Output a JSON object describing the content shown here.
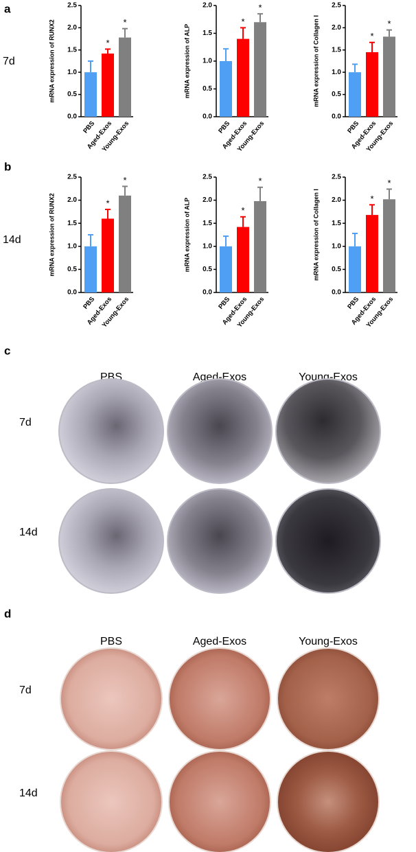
{
  "figure": {
    "panels": [
      {
        "label": "a",
        "row_label": "7d"
      },
      {
        "label": "b",
        "row_label": "14d"
      },
      {
        "label": "c",
        "columns": [
          "PBS",
          "Aged-Exos",
          "Young-Exos"
        ],
        "rows": [
          "7d",
          "14d"
        ]
      },
      {
        "label": "d",
        "columns": [
          "PBS",
          "Aged-Exos",
          "Young-Exos"
        ],
        "rows": [
          "7d",
          "14d"
        ]
      }
    ]
  },
  "chart_data": [
    {
      "type": "bar",
      "ylabel": "mRNA expression of RUNX2",
      "categories": [
        "PBS",
        "Aged-Exos",
        "Young-Exos"
      ],
      "values": [
        1.0,
        1.42,
        1.78
      ],
      "errors": [
        0.25,
        0.1,
        0.2
      ],
      "annotations": [
        null,
        "*",
        "*"
      ],
      "colors": [
        "#4f9ff5",
        "#ff0000",
        "#808080"
      ],
      "ylim": [
        0,
        2.5
      ],
      "yticks": [
        {
          "value": 0,
          "label": "0.0"
        },
        0.5,
        {
          "value": 1,
          "label": "1.0"
        },
        1.5,
        {
          "value": 2,
          "label": "2.0"
        },
        2.5
      ]
    },
    {
      "type": "bar",
      "ylabel": "mRNA expression of ALP",
      "categories": [
        "PBS",
        "Aged-Exos",
        "Young-Exos"
      ],
      "values": [
        1.0,
        1.4,
        1.7
      ],
      "errors": [
        0.22,
        0.2,
        0.15
      ],
      "annotations": [
        null,
        "*",
        "*"
      ],
      "colors": [
        "#4f9ff5",
        "#ff0000",
        "#808080"
      ],
      "ylim": [
        0,
        2
      ],
      "yticks": [
        {
          "value": 0,
          "label": "0.0"
        },
        0.5,
        {
          "value": 1,
          "label": "1.0"
        },
        1.5,
        {
          "value": 2,
          "label": "2.0"
        }
      ]
    },
    {
      "type": "bar",
      "ylabel": "mRNA expression of Collagen I",
      "categories": [
        "PBS",
        "Aged-Exos",
        "Young-Exos"
      ],
      "values": [
        1.0,
        1.45,
        1.8
      ],
      "errors": [
        0.18,
        0.22,
        0.15
      ],
      "annotations": [
        null,
        "*",
        "*"
      ],
      "colors": [
        "#4f9ff5",
        "#ff0000",
        "#808080"
      ],
      "ylim": [
        0,
        2.5
      ],
      "yticks": [
        {
          "value": 0,
          "label": "0.0"
        },
        0.5,
        {
          "value": 1,
          "label": "1.0"
        },
        1.5,
        {
          "value": 2,
          "label": "2.0"
        },
        2.5
      ]
    },
    {
      "type": "bar",
      "ylabel": "mRNA expression of RUNX2",
      "categories": [
        "PBS",
        "Aged-Exos",
        "Young-Exos"
      ],
      "values": [
        1.0,
        1.6,
        2.1
      ],
      "errors": [
        0.25,
        0.2,
        0.2
      ],
      "annotations": [
        null,
        "*",
        "*"
      ],
      "colors": [
        "#4f9ff5",
        "#ff0000",
        "#808080"
      ],
      "ylim": [
        0,
        2.5
      ],
      "yticks": [
        {
          "value": 0,
          "label": "0.0"
        },
        0.5,
        {
          "value": 1,
          "label": "1.0"
        },
        1.5,
        {
          "value": 2,
          "label": "2.0"
        },
        2.5
      ]
    },
    {
      "type": "bar",
      "ylabel": "mRNA expression of ALP",
      "categories": [
        "PBS",
        "Aged-Exos",
        "Young-Exos"
      ],
      "values": [
        1.0,
        1.42,
        1.98
      ],
      "errors": [
        0.22,
        0.22,
        0.3
      ],
      "annotations": [
        null,
        "*",
        "*"
      ],
      "colors": [
        "#4f9ff5",
        "#ff0000",
        "#808080"
      ],
      "ylim": [
        0,
        2.5
      ],
      "yticks": [
        {
          "value": 0,
          "label": "0.0"
        },
        0.5,
        {
          "value": 1,
          "label": "1.0"
        },
        1.5,
        {
          "value": 2,
          "label": "2.0"
        },
        2.5
      ]
    },
    {
      "type": "bar",
      "ylabel": "mRNA expression of Collagen I",
      "categories": [
        "PBS",
        "Aged-Exos",
        "Young-Exos"
      ],
      "values": [
        1.0,
        1.68,
        2.02
      ],
      "errors": [
        0.28,
        0.22,
        0.22
      ],
      "annotations": [
        null,
        "*",
        "*"
      ],
      "colors": [
        "#4f9ff5",
        "#ff0000",
        "#808080"
      ],
      "ylim": [
        0,
        2.5
      ],
      "yticks": [
        {
          "value": 0,
          "label": "0.0"
        },
        0.5,
        {
          "value": 1,
          "label": "1.0"
        },
        1.5,
        {
          "value": 2,
          "label": "2.0"
        },
        2.5
      ]
    }
  ]
}
